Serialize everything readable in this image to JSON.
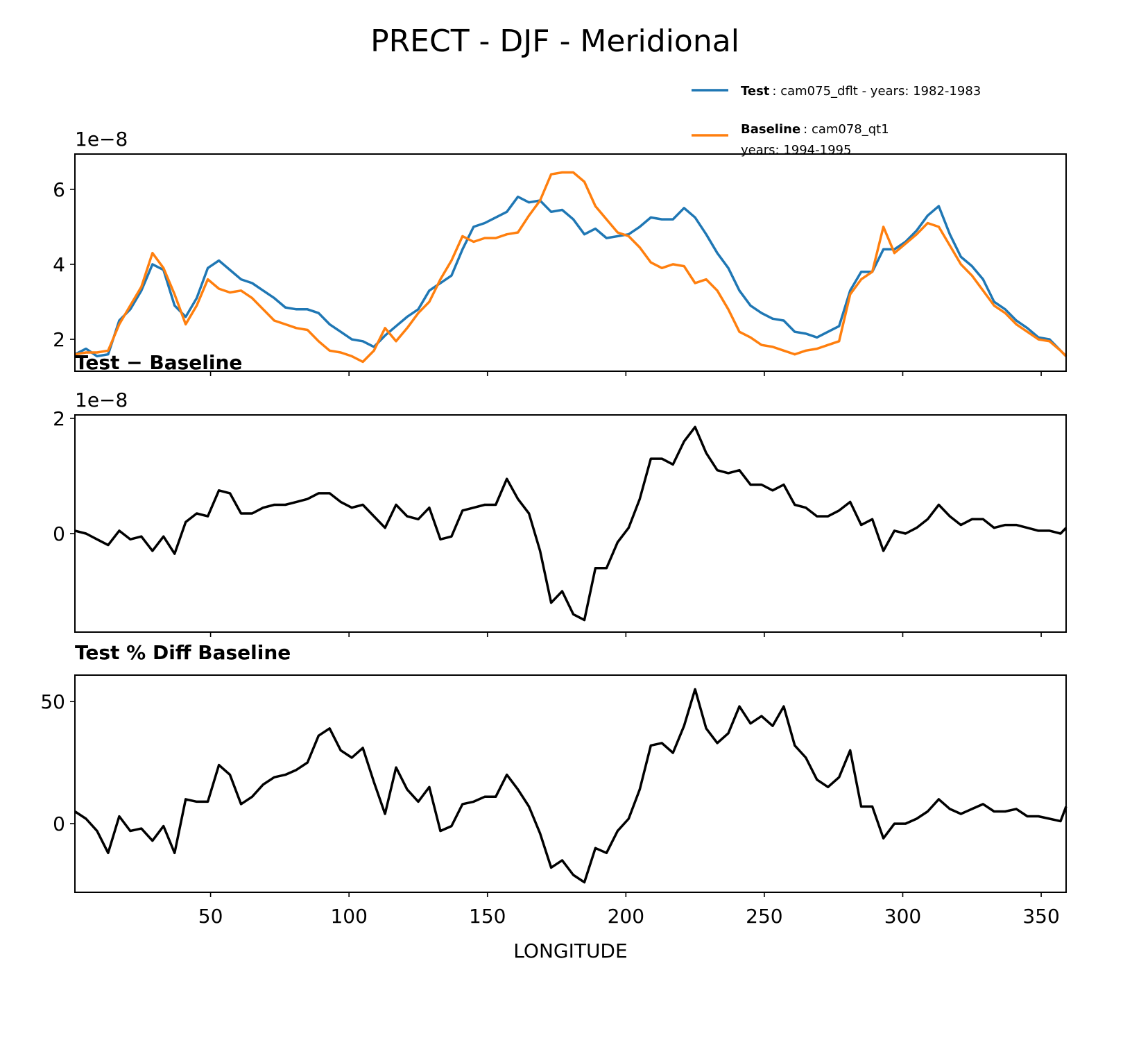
{
  "title": "PRECT - DJF - Meridional",
  "chart_data": [
    {
      "type": "line",
      "offset_label": "1e−8",
      "x": [
        1,
        5,
        9,
        13,
        17,
        21,
        25,
        29,
        33,
        37,
        41,
        45,
        49,
        53,
        57,
        61,
        65,
        69,
        73,
        77,
        81,
        85,
        89,
        93,
        97,
        101,
        105,
        109,
        113,
        117,
        121,
        125,
        129,
        133,
        137,
        141,
        145,
        149,
        153,
        157,
        161,
        165,
        169,
        173,
        177,
        181,
        185,
        189,
        193,
        197,
        201,
        205,
        209,
        213,
        217,
        221,
        225,
        229,
        233,
        237,
        241,
        245,
        249,
        253,
        257,
        261,
        265,
        269,
        273,
        277,
        281,
        285,
        289,
        293,
        297,
        301,
        305,
        309,
        313,
        317,
        321,
        325,
        329,
        333,
        337,
        341,
        345,
        349,
        353,
        357,
        359
      ],
      "series": [
        {
          "name": "Test",
          "description": [
            ": cam075_dflt - years: 1982-1983"
          ],
          "color": "#1f77b4",
          "values": [
            1.6,
            1.75,
            1.55,
            1.6,
            2.5,
            2.8,
            3.3,
            4.0,
            3.85,
            2.9,
            2.6,
            3.1,
            3.9,
            4.1,
            3.85,
            3.6,
            3.5,
            3.3,
            3.1,
            2.85,
            2.8,
            2.8,
            2.7,
            2.4,
            2.2,
            2.0,
            1.95,
            1.8,
            2.1,
            2.35,
            2.6,
            2.8,
            3.3,
            3.5,
            3.7,
            4.4,
            5.0,
            5.1,
            5.25,
            5.4,
            5.8,
            5.65,
            5.7,
            5.4,
            5.45,
            5.2,
            4.8,
            4.95,
            4.7,
            4.75,
            4.8,
            5.0,
            5.25,
            5.2,
            5.2,
            5.5,
            5.25,
            4.8,
            4.3,
            3.9,
            3.3,
            2.9,
            2.7,
            2.55,
            2.5,
            2.2,
            2.15,
            2.05,
            2.2,
            2.35,
            3.3,
            3.8,
            3.8,
            4.4,
            4.4,
            4.6,
            4.9,
            5.3,
            5.55,
            4.8,
            4.2,
            3.95,
            3.6,
            3.0,
            2.8,
            2.5,
            2.3,
            2.05,
            2.0,
            1.7,
            1.55
          ]
        },
        {
          "name": "Baseline",
          "description": [
            ": cam078_qt1",
            "years: 1994-1995"
          ],
          "color": "#ff7f0e",
          "values": [
            1.6,
            1.65,
            1.65,
            1.7,
            2.4,
            2.9,
            3.4,
            4.3,
            3.9,
            3.2,
            2.4,
            2.9,
            3.6,
            3.35,
            3.25,
            3.3,
            3.1,
            2.8,
            2.5,
            2.4,
            2.3,
            2.25,
            1.95,
            1.7,
            1.65,
            1.55,
            1.4,
            1.7,
            2.3,
            1.95,
            2.3,
            2.7,
            3.0,
            3.6,
            4.1,
            4.75,
            4.6,
            4.7,
            4.7,
            4.8,
            4.85,
            5.3,
            5.7,
            6.4,
            6.45,
            6.45,
            6.2,
            5.55,
            5.2,
            4.85,
            4.75,
            4.45,
            4.05,
            3.9,
            4.0,
            3.95,
            3.5,
            3.6,
            3.3,
            2.8,
            2.2,
            2.05,
            1.85,
            1.8,
            1.7,
            1.6,
            1.7,
            1.75,
            1.85,
            1.95,
            3.2,
            3.6,
            3.8,
            5.0,
            4.3,
            4.55,
            4.8,
            5.1,
            5.0,
            4.5,
            4.0,
            3.7,
            3.3,
            2.9,
            2.7,
            2.4,
            2.2,
            2.0,
            1.95,
            1.7,
            1.55
          ]
        }
      ],
      "xlim": [
        1,
        359
      ],
      "xticks": [
        50,
        100,
        150,
        200,
        250,
        300,
        350
      ],
      "xtick_labels": false,
      "ylim": [
        1.15,
        6.94
      ],
      "yticks": [
        2,
        4,
        6
      ]
    },
    {
      "type": "line",
      "title": "Test − Baseline",
      "offset_label": "1e−8",
      "color": "#000000",
      "x": [
        1,
        5,
        9,
        13,
        17,
        21,
        25,
        29,
        33,
        37,
        41,
        45,
        49,
        53,
        57,
        61,
        65,
        69,
        73,
        77,
        81,
        85,
        89,
        93,
        97,
        101,
        105,
        109,
        113,
        117,
        121,
        125,
        129,
        133,
        137,
        141,
        145,
        149,
        153,
        157,
        161,
        165,
        169,
        173,
        177,
        181,
        185,
        189,
        193,
        197,
        201,
        205,
        209,
        213,
        217,
        221,
        225,
        229,
        233,
        237,
        241,
        245,
        249,
        253,
        257,
        261,
        265,
        269,
        273,
        277,
        281,
        285,
        289,
        293,
        297,
        301,
        305,
        309,
        313,
        317,
        321,
        325,
        329,
        333,
        337,
        341,
        345,
        349,
        353,
        357,
        359
      ],
      "values": [
        0.05,
        0.0,
        -0.1,
        -0.2,
        0.05,
        -0.1,
        -0.05,
        -0.3,
        -0.05,
        -0.35,
        0.2,
        0.35,
        0.3,
        0.75,
        0.7,
        0.35,
        0.35,
        0.45,
        0.5,
        0.5,
        0.55,
        0.6,
        0.7,
        0.7,
        0.55,
        0.45,
        0.5,
        0.3,
        0.1,
        0.5,
        0.3,
        0.25,
        0.45,
        -0.1,
        -0.05,
        0.4,
        0.45,
        0.5,
        0.5,
        0.95,
        0.6,
        0.35,
        -0.3,
        -1.2,
        -1.0,
        -1.4,
        -1.5,
        -0.6,
        -0.6,
        -0.15,
        0.1,
        0.6,
        1.3,
        1.3,
        1.2,
        1.6,
        1.85,
        1.4,
        1.1,
        1.05,
        1.1,
        0.85,
        0.85,
        0.75,
        0.85,
        0.5,
        0.45,
        0.3,
        0.3,
        0.4,
        0.55,
        0.15,
        0.25,
        -0.3,
        0.05,
        0.0,
        0.1,
        0.25,
        0.5,
        0.3,
        0.15,
        0.25,
        0.25,
        0.1,
        0.15,
        0.15,
        0.1,
        0.05,
        0.05,
        0.0,
        0.1
      ],
      "xlim": [
        1,
        359
      ],
      "xticks": [
        50,
        100,
        150,
        200,
        250,
        300,
        350
      ],
      "xtick_labels": false,
      "ylim": [
        -1.71,
        2.06
      ],
      "yticks": [
        0,
        2
      ]
    },
    {
      "type": "line",
      "title": "Test % Diff Baseline",
      "xlabel": "LONGITUDE",
      "color": "#000000",
      "x": [
        1,
        5,
        9,
        13,
        17,
        21,
        25,
        29,
        33,
        37,
        41,
        45,
        49,
        53,
        57,
        61,
        65,
        69,
        73,
        77,
        81,
        85,
        89,
        93,
        97,
        101,
        105,
        109,
        113,
        117,
        121,
        125,
        129,
        133,
        137,
        141,
        145,
        149,
        153,
        157,
        161,
        165,
        169,
        173,
        177,
        181,
        185,
        189,
        193,
        197,
        201,
        205,
        209,
        213,
        217,
        221,
        225,
        229,
        233,
        237,
        241,
        245,
        249,
        253,
        257,
        261,
        265,
        269,
        273,
        277,
        281,
        285,
        289,
        293,
        297,
        301,
        305,
        309,
        313,
        317,
        321,
        325,
        329,
        333,
        337,
        341,
        345,
        349,
        353,
        357,
        359
      ],
      "values": [
        5,
        2,
        -3,
        -12,
        3,
        -3,
        -2,
        -7,
        -1,
        -12,
        10,
        9,
        9,
        24,
        20,
        8,
        11,
        16,
        19,
        20,
        22,
        25,
        36,
        39,
        30,
        27,
        31,
        17,
        4,
        23,
        14,
        9,
        15,
        -3,
        -1,
        8,
        9,
        11,
        11,
        20,
        14,
        7,
        -4,
        -18,
        -15,
        -21,
        -24,
        -10,
        -12,
        -3,
        2,
        14,
        32,
        33,
        29,
        40,
        55,
        39,
        33,
        37,
        48,
        41,
        44,
        40,
        48,
        32,
        27,
        18,
        15,
        19,
        30,
        7,
        7,
        -6,
        0,
        0,
        2,
        5,
        10,
        6,
        4,
        6,
        8,
        5,
        5,
        6,
        3,
        3,
        2,
        1,
        7
      ],
      "xlim": [
        1,
        359
      ],
      "xticks": [
        50,
        100,
        150,
        200,
        250,
        300,
        350
      ],
      "xtick_labels": true,
      "ylim": [
        -28.1,
        60.8
      ],
      "yticks": [
        0,
        50
      ]
    }
  ]
}
